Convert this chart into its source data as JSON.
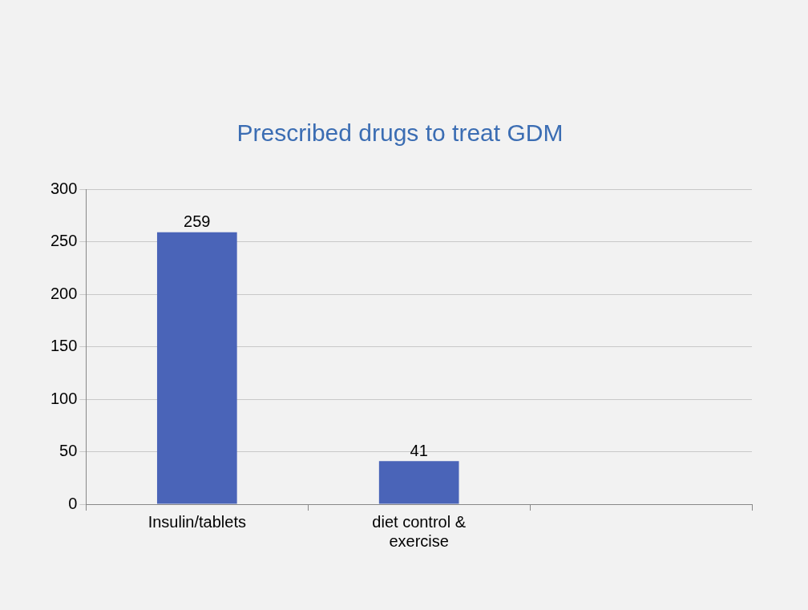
{
  "chart_data": {
    "type": "bar",
    "title": "Prescribed drugs to treat GDM",
    "categories": [
      "Insulin/tablets",
      "diet control & exercise",
      null
    ],
    "values": [
      259,
      41,
      null
    ],
    "color": "#4a64b8",
    "ylim": [
      0,
      300
    ],
    "yticks": [
      0,
      50,
      100,
      150,
      200,
      250,
      300
    ],
    "grid": "y",
    "data_labels": true
  }
}
